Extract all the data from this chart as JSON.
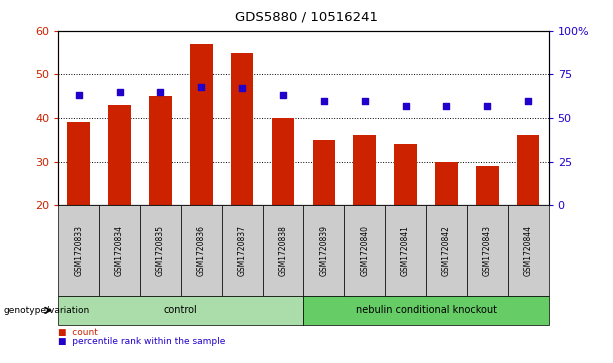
{
  "title": "GDS5880 / 10516241",
  "samples": [
    "GSM1720833",
    "GSM1720834",
    "GSM1720835",
    "GSM1720836",
    "GSM1720837",
    "GSM1720838",
    "GSM1720839",
    "GSM1720840",
    "GSM1720841",
    "GSM1720842",
    "GSM1720843",
    "GSM1720844"
  ],
  "counts": [
    39,
    43,
    45,
    57,
    55,
    40,
    35,
    36,
    34,
    30,
    29,
    36
  ],
  "percentiles": [
    63,
    65,
    65,
    68,
    67,
    63,
    60,
    60,
    57,
    57,
    57,
    60
  ],
  "bar_color": "#cc2200",
  "dot_color": "#2200cc",
  "ylim_left": [
    20,
    60
  ],
  "ylim_right": [
    0,
    100
  ],
  "yticks_left": [
    20,
    30,
    40,
    50,
    60
  ],
  "yticks_right": [
    0,
    25,
    50,
    75,
    100
  ],
  "ytick_labels_right": [
    "0",
    "25",
    "50",
    "75",
    "100%"
  ],
  "groups": [
    {
      "label": "control",
      "start": 0,
      "end": 5,
      "color": "#aaddaa"
    },
    {
      "label": "nebulin conditional knockout",
      "start": 6,
      "end": 11,
      "color": "#66cc66"
    }
  ],
  "group_row_label": "genotype/variation",
  "legend_count_color": "#cc2200",
  "legend_perc_color": "#2200cc",
  "sample_bg_color": "#cccccc",
  "bar_bottom": 20,
  "figwidth": 6.13,
  "figheight": 3.63,
  "dpi": 100
}
